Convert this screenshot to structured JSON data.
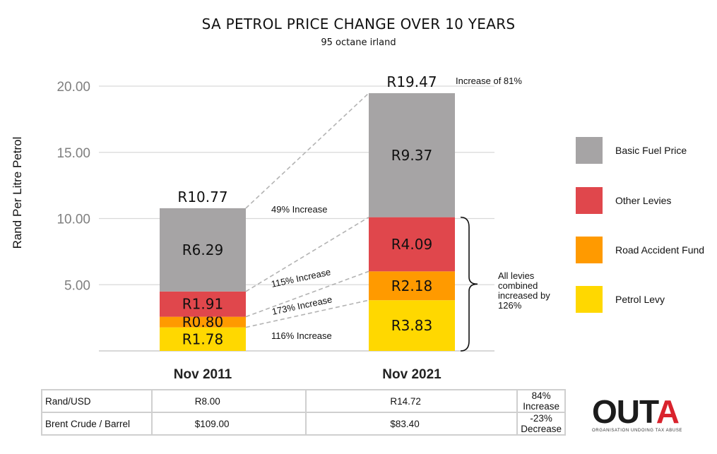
{
  "chart_data": {
    "type": "bar",
    "stacked": true,
    "title": "SA PETROL PRICE CHANGE OVER 10 YEARS",
    "subtitle": "95 octane irland",
    "ylabel": "Rand Per Litre Petrol",
    "ylim": [
      0,
      20
    ],
    "yticks": [
      "5.00",
      "10.00",
      "15.00",
      "20.00"
    ],
    "grid": true,
    "legend_position": "right",
    "categories": [
      "Nov 2011",
      "Nov 2021"
    ],
    "totals": [
      10.77,
      19.47
    ],
    "total_labels": [
      "R10.77",
      "R19.47"
    ],
    "series": [
      {
        "name": "Petrol Levy",
        "color": "#ffd800",
        "values": [
          1.78,
          3.83
        ],
        "labels": [
          "R1.78",
          "R3.83"
        ]
      },
      {
        "name": "Road Accident Fund",
        "color": "#ff9a00",
        "values": [
          0.8,
          2.18
        ],
        "labels": [
          "R0.80",
          "R2.18"
        ]
      },
      {
        "name": "Other Levies",
        "color": "#e0474c",
        "values": [
          1.91,
          4.09
        ],
        "labels": [
          "R1.91",
          "R4.09"
        ]
      },
      {
        "name": "Basic Fuel Price",
        "color": "#a6a4a5",
        "values": [
          6.29,
          9.37
        ],
        "labels": [
          "R6.29",
          "R9.37"
        ]
      }
    ],
    "annotations": {
      "total_change": "Increase of 81%",
      "basic_fuel_change": "49% Increase",
      "other_levies_change": "115% Increase",
      "raf_change": "173% Increase",
      "petrol_levy_change": "116% Increase",
      "levies_combined": [
        "All levies",
        "combined",
        "increased by",
        "126%"
      ]
    }
  },
  "legend_order": [
    "Basic Fuel Price",
    "Other Levies",
    "Road Accident Fund",
    "Petrol Levy"
  ],
  "table": {
    "rows": [
      {
        "label": "Rand/USD",
        "v2011": "R8.00",
        "v2021": "R14.72",
        "change": "84% Increase"
      },
      {
        "label": "Brent Crude / Barrel",
        "v2011": "$109.00",
        "v2021": "$83.40",
        "change": "-23% Decrease"
      }
    ]
  },
  "logo": {
    "text_main": "OUT",
    "text_accent": "A",
    "tagline": "ORGANISATION UNDOING TAX ABUSE",
    "accent_color": "#d9232d"
  }
}
